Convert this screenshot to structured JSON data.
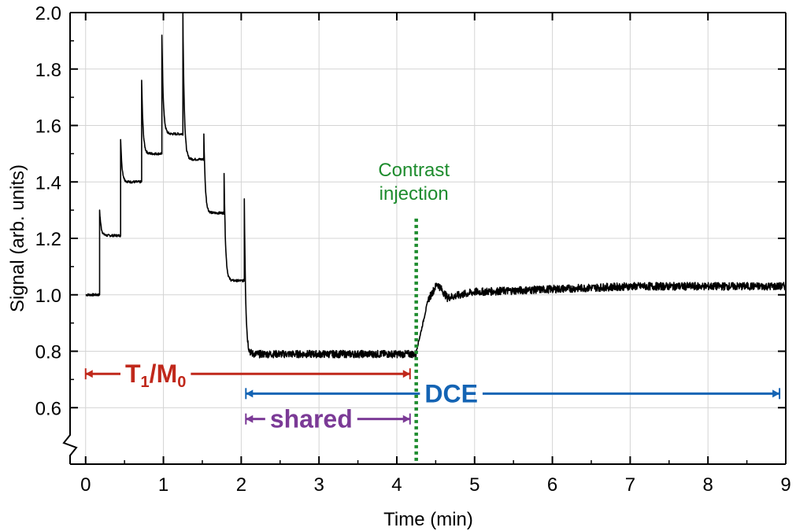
{
  "chart_data": {
    "type": "line",
    "title": "",
    "xlabel": "Time (min)",
    "ylabel": "Signal (arb. units)",
    "xlim": [
      -0.2,
      9
    ],
    "ylim": [
      0.4,
      2.0
    ],
    "x_ticks": [
      0,
      1,
      2,
      3,
      4,
      5,
      6,
      7,
      8,
      9
    ],
    "x_tick_labels": [
      "0",
      "1",
      "2",
      "3",
      "4",
      "5",
      "6",
      "7",
      "8",
      "9"
    ],
    "y_ticks": [
      0.6,
      0.8,
      1.0,
      1.2,
      1.4,
      1.6,
      1.8,
      2.0
    ],
    "y_tick_labels": [
      "0.6",
      "0.8",
      "1.0",
      "1.2",
      "1.4",
      "1.6",
      "1.8",
      "2.0"
    ],
    "grid": true,
    "axis_break": "y-axis break below 0.6",
    "series": [
      {
        "name": "Signal",
        "color": "#000000",
        "plateaus": [
          {
            "start": 0.0,
            "end": 0.18,
            "level": 1.0,
            "peak": null
          },
          {
            "start": 0.18,
            "end": 0.45,
            "level": 1.21,
            "peak": 1.3
          },
          {
            "start": 0.45,
            "end": 0.72,
            "level": 1.4,
            "peak": 1.55
          },
          {
            "start": 0.72,
            "end": 0.98,
            "level": 1.5,
            "peak": 1.76
          },
          {
            "start": 0.98,
            "end": 1.25,
            "level": 1.57,
            "peak": 1.92
          },
          {
            "start": 1.25,
            "end": 1.52,
            "level": 1.48,
            "peak": 2.0
          },
          {
            "start": 1.52,
            "end": 1.78,
            "level": 1.29,
            "peak": 1.57
          },
          {
            "start": 1.78,
            "end": 2.04,
            "level": 1.05,
            "peak": 1.43
          },
          {
            "start": 2.04,
            "end": 4.25,
            "level": 0.79,
            "peak": 1.34
          }
        ],
        "post_injection": [
          {
            "x": 4.25,
            "y": 0.8
          },
          {
            "x": 4.32,
            "y": 0.88
          },
          {
            "x": 4.4,
            "y": 0.98
          },
          {
            "x": 4.52,
            "y": 1.04
          },
          {
            "x": 4.65,
            "y": 0.99
          },
          {
            "x": 5.0,
            "y": 1.01
          },
          {
            "x": 6.0,
            "y": 1.02
          },
          {
            "x": 7.0,
            "y": 1.03
          },
          {
            "x": 8.0,
            "y": 1.03
          },
          {
            "x": 9.0,
            "y": 1.03
          }
        ],
        "noise_amplitude": 0.012
      }
    ],
    "annotations": [
      {
        "id": "injection",
        "text_lines": [
          "Contrast",
          "injection"
        ],
        "x": 4.25,
        "y_from": 0.4,
        "y_to": 1.27,
        "color": "#1e8c2e",
        "style": "dotted-vertical-line"
      }
    ],
    "spans": [
      {
        "id": "t1m0",
        "label_parts": [
          "T",
          "1",
          "/M",
          "0"
        ],
        "x_start": 0.0,
        "x_end": 4.17,
        "y": 0.72,
        "color": "#c0281b"
      },
      {
        "id": "dce",
        "label_parts": [
          "DCE"
        ],
        "x_start": 2.06,
        "x_end": 8.92,
        "y": 0.65,
        "color": "#1464b4"
      },
      {
        "id": "shared",
        "label_parts": [
          "shared"
        ],
        "x_start": 2.06,
        "x_end": 4.17,
        "y": 0.56,
        "color": "#7b3a96"
      }
    ]
  }
}
